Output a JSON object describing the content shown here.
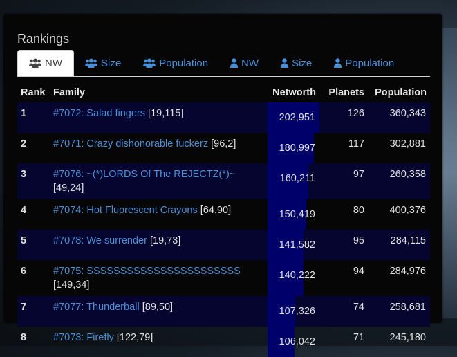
{
  "panel": {
    "title": "Rankings"
  },
  "tabs": [
    {
      "label": "NW",
      "icon": "users-icon",
      "active": true
    },
    {
      "label": "Size",
      "icon": "users-icon",
      "active": false
    },
    {
      "label": "Population",
      "icon": "users-icon",
      "active": false
    },
    {
      "label": "NW",
      "icon": "user-icon",
      "active": false
    },
    {
      "label": "Size",
      "icon": "user-icon",
      "active": false
    },
    {
      "label": "Population",
      "icon": "user-icon",
      "active": false
    }
  ],
  "table": {
    "headers": [
      "Rank",
      "Family",
      "Networth",
      "Planets",
      "Population"
    ],
    "max_networth": 202951,
    "rows": [
      {
        "rank": "1",
        "family": "#7072: Salad fingers",
        "coords": "[19,115]",
        "networth": "202,951",
        "networth_value": 202951,
        "planets": "126",
        "population": "360,343"
      },
      {
        "rank": "2",
        "family": "#7071: Crazy dishonorable fuckerz",
        "coords": "[96,2]",
        "networth": "180,997",
        "networth_value": 180997,
        "planets": "117",
        "population": "302,881"
      },
      {
        "rank": "3",
        "family": "#7076: ~(*)LORDS Of The REJECTZ(*)~",
        "coords": "[49,24]",
        "networth": "160,211",
        "networth_value": 160211,
        "planets": "97",
        "population": "260,358"
      },
      {
        "rank": "4",
        "family": "#7074: Hot Fluorescent Crayons",
        "coords": "[64,90]",
        "networth": "150,419",
        "networth_value": 150419,
        "planets": "80",
        "population": "400,376"
      },
      {
        "rank": "5",
        "family": "#7078: We surrender",
        "coords": "[19,73]",
        "networth": "141,582",
        "networth_value": 141582,
        "planets": "95",
        "population": "284,115"
      },
      {
        "rank": "6",
        "family": "#7075: SSSSSSSSSSSSSSSSSSSSSSS",
        "coords": "[149,34]",
        "networth": "140,222",
        "networth_value": 140222,
        "planets": "94",
        "population": "284,976"
      },
      {
        "rank": "7",
        "family": "#7077: Thunderball",
        "coords": "[89,50]",
        "networth": "107,326",
        "networth_value": 107326,
        "planets": "74",
        "population": "258,681"
      },
      {
        "rank": "8",
        "family": "#7073: Firefly",
        "coords": "[122,79]",
        "networth": "106,042",
        "networth_value": 106042,
        "planets": "71",
        "population": "245,180"
      }
    ]
  },
  "colors": {
    "link": "#4a8fd6",
    "bar": "#00006b",
    "row_stripe": "#050530",
    "panel_bg": "#060606"
  }
}
